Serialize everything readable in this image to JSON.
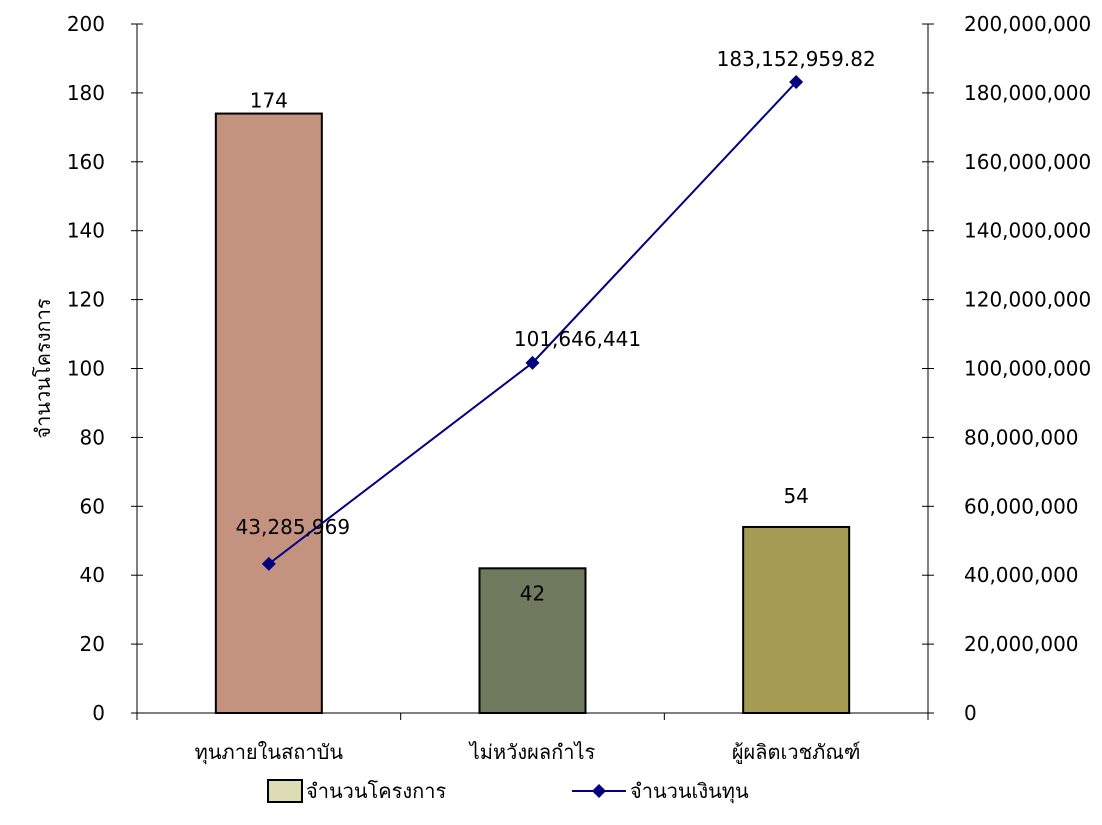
{
  "chart_data": {
    "type": "bar",
    "categories": [
      "ทุนภายในสถาบัน",
      "ไม่หวังผลกำไร",
      "ผู้ผลิตเวชภัณฑ์"
    ],
    "series": [
      {
        "name": "จำนวนโครงการ",
        "type": "bar",
        "axis": "left",
        "values": [
          174,
          42,
          54
        ],
        "labels": [
          "174",
          "42",
          "54"
        ],
        "colors": [
          "#C4937F",
          "#6F7A5E",
          "#A59B52"
        ]
      },
      {
        "name": "จำนวนเงินทุน",
        "type": "line",
        "axis": "right",
        "values": [
          43285969,
          101646441,
          183152959.82
        ],
        "labels": [
          "43,285,969",
          "101,646,441",
          "183,152,959.82"
        ],
        "color": "#000080",
        "marker": "diamond"
      }
    ],
    "ylabel": "จำนวนโครงการ",
    "ylim": [
      0,
      200
    ],
    "yticks": [
      "0",
      "20",
      "40",
      "60",
      "80",
      "100",
      "120",
      "140",
      "160",
      "180",
      "200"
    ],
    "y2lim": [
      0,
      200000000
    ],
    "y2ticks": [
      "0",
      "20,000,000",
      "40,000,000",
      "60,000,000",
      "80,000,000",
      "100,000,000",
      "120,000,000",
      "140,000,000",
      "160,000,000",
      "180,000,000",
      "200,000,000"
    ],
    "grid": false,
    "legend_position": "bottom",
    "legend_swatch_color": "#DDDCB5"
  }
}
